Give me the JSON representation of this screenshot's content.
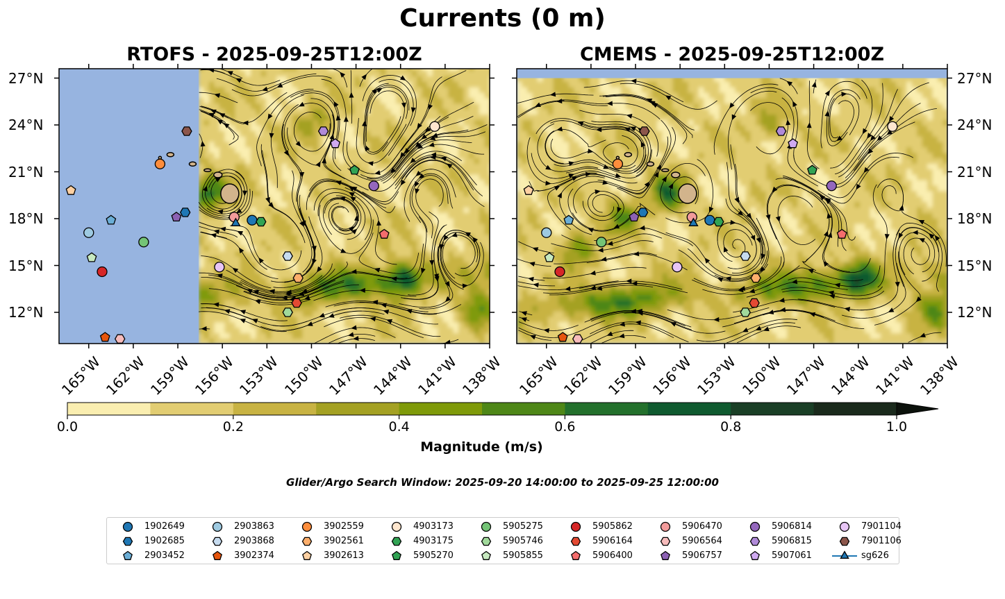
{
  "figure": {
    "suptitle": "Currents (0 m)",
    "search_window": "Glider/Argo Search Window: 2025-09-20 14:00:00 to 2025-09-25 12:00:00"
  },
  "panels": [
    {
      "id": "rtofs",
      "title": "RTOFS - 2025-09-25T12:00Z",
      "data_extent_note": "model domain covers east of ~157.5°W"
    },
    {
      "id": "cmems",
      "title": "CMEMS - 2025-09-25T12:00Z"
    }
  ],
  "axes": {
    "lon_ticks": [
      -165,
      -162,
      -159,
      -156,
      -153,
      -150,
      -147,
      -144,
      -141,
      -138
    ],
    "lon_labels": [
      "165°W",
      "162°W",
      "159°W",
      "156°W",
      "153°W",
      "150°W",
      "147°W",
      "144°W",
      "141°W",
      "138°W"
    ],
    "lat_ticks": [
      12,
      15,
      18,
      21,
      24,
      27
    ],
    "lat_labels": [
      "12°N",
      "15°N",
      "18°N",
      "21°N",
      "24°N",
      "27°N"
    ],
    "lon_range": [
      -167,
      -138
    ],
    "lat_range": [
      10,
      27.6
    ]
  },
  "colorbar": {
    "label": "Magnitude (m/s)",
    "tick_values": [
      0.0,
      0.2,
      0.4,
      0.6,
      0.8,
      1.0
    ],
    "tick_labels": [
      "0.0",
      "0.2",
      "0.4",
      "0.6",
      "0.8",
      "1.0"
    ],
    "levels": [
      0,
      0.1,
      0.2,
      0.3,
      0.4,
      0.5,
      0.6,
      0.7,
      0.8,
      0.9,
      1.0
    ],
    "colors": [
      "#faeeb0",
      "#e2cd72",
      "#c8b343",
      "#a4a123",
      "#7f9a09",
      "#4e8717",
      "#23702c",
      "#0f5a2f",
      "#1a3f26",
      "#1a2a1c",
      "#0c120c"
    ]
  },
  "colors": {
    "ocean_nodata": "#97b4e0",
    "land": "#d2b48c",
    "streamline": "#000000"
  },
  "platforms": [
    {
      "id": "1902649",
      "color": "#1f77b4",
      "marker": "circle",
      "lon": -154,
      "lat": 17.9
    },
    {
      "id": "1902685",
      "color": "#1f77b4",
      "marker": "hexagon",
      "lon": -158.5,
      "lat": 18.4
    },
    {
      "id": "2903452",
      "color": "#6baed6",
      "marker": "pentagon",
      "lon": -163.5,
      "lat": 17.9
    },
    {
      "id": "2903863",
      "color": "#9ecae1",
      "marker": "circle",
      "lon": -165,
      "lat": 17.1
    },
    {
      "id": "2903868",
      "color": "#c6dbef",
      "marker": "hexagon",
      "lon": -151.6,
      "lat": 15.6
    },
    {
      "id": "3902374",
      "color": "#e6550d",
      "marker": "pentagon",
      "lon": -163.9,
      "lat": 10.4
    },
    {
      "id": "3902559",
      "color": "#fd8d3c",
      "marker": "circle",
      "lon": -160.2,
      "lat": 21.5
    },
    {
      "id": "3902561",
      "color": "#fdae6b",
      "marker": "hexagon",
      "lon": -150.9,
      "lat": 14.2
    },
    {
      "id": "3902613",
      "color": "#fdd0a2",
      "marker": "pentagon",
      "lon": -166.2,
      "lat": 19.8
    },
    {
      "id": "4903173",
      "color": "#fee6ce",
      "marker": "circle",
      "lon": -141.7,
      "lat": 23.9
    },
    {
      "id": "4903175",
      "color": "#31a354",
      "marker": "hexagon",
      "lon": -153.4,
      "lat": 17.8
    },
    {
      "id": "5905270",
      "color": "#31a354",
      "marker": "pentagon",
      "lon": -147.1,
      "lat": 21.1
    },
    {
      "id": "5905275",
      "color": "#74c476",
      "marker": "circle",
      "lon": -161.3,
      "lat": 16.5
    },
    {
      "id": "5905746",
      "color": "#a1d99b",
      "marker": "hexagon",
      "lon": -151.6,
      "lat": 12.0
    },
    {
      "id": "5905855",
      "color": "#c7e9c0",
      "marker": "pentagon",
      "lon": -164.8,
      "lat": 15.5
    },
    {
      "id": "5905862",
      "color": "#d62728",
      "marker": "circle",
      "lon": -164.1,
      "lat": 14.6
    },
    {
      "id": "5906164",
      "color": "#e34a33",
      "marker": "hexagon",
      "lon": -151.0,
      "lat": 12.6
    },
    {
      "id": "5906400",
      "color": "#f46d6d",
      "marker": "pentagon",
      "lon": -145.1,
      "lat": 17.0
    },
    {
      "id": "5906470",
      "color": "#f29b9b",
      "marker": "circle",
      "lon": -155.2,
      "lat": 18.1
    },
    {
      "id": "5906564",
      "color": "#f7bcbc",
      "marker": "hexagon",
      "lon": -162.9,
      "lat": 10.3
    },
    {
      "id": "5906757",
      "color": "#8c61b3",
      "marker": "pentagon",
      "lon": -159.1,
      "lat": 18.1
    },
    {
      "id": "5906814",
      "color": "#9467bd",
      "marker": "circle",
      "lon": -145.8,
      "lat": 20.1
    },
    {
      "id": "5906815",
      "color": "#b08ad8",
      "marker": "hexagon",
      "lon": -149.2,
      "lat": 23.6
    },
    {
      "id": "5907061",
      "color": "#cfa9f0",
      "marker": "pentagon",
      "lon": -148.4,
      "lat": 22.8
    },
    {
      "id": "7901104",
      "color": "#e7c5f5",
      "marker": "circle",
      "lon": -156.2,
      "lat": 14.9
    },
    {
      "id": "7901106",
      "color": "#8c564b",
      "marker": "hexagon",
      "lon": -158.4,
      "lat": 23.6
    },
    {
      "id": "sg626",
      "color": "#1f77b4",
      "marker": "triangle",
      "lon": -155.1,
      "lat": 17.7
    }
  ]
}
